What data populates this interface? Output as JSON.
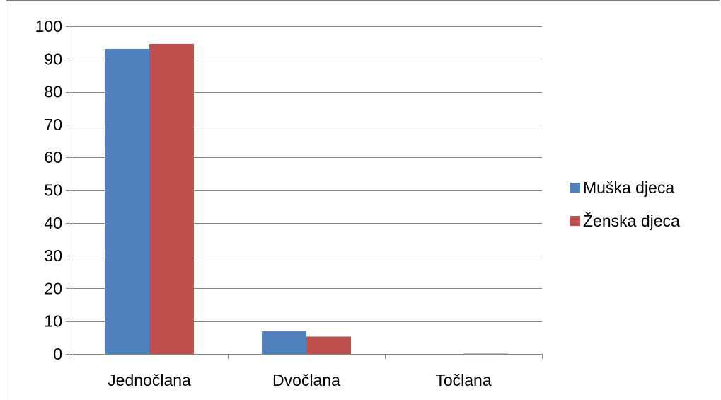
{
  "chart_data": {
    "type": "bar",
    "categories": [
      "Jednočlana",
      "Dvočlana",
      "Točlana"
    ],
    "series": [
      {
        "name": "Muška djeca",
        "values": [
          93.1,
          6.9,
          0
        ],
        "color": "#4F81BD"
      },
      {
        "name": "Ženska djeca",
        "values": [
          94.6,
          5.3,
          0.1
        ],
        "color": "#C0504D"
      }
    ],
    "ylim": [
      0,
      100
    ],
    "yticks": [
      0,
      10,
      20,
      30,
      40,
      50,
      60,
      70,
      80,
      90,
      100
    ],
    "grid": true,
    "legend": "right"
  }
}
